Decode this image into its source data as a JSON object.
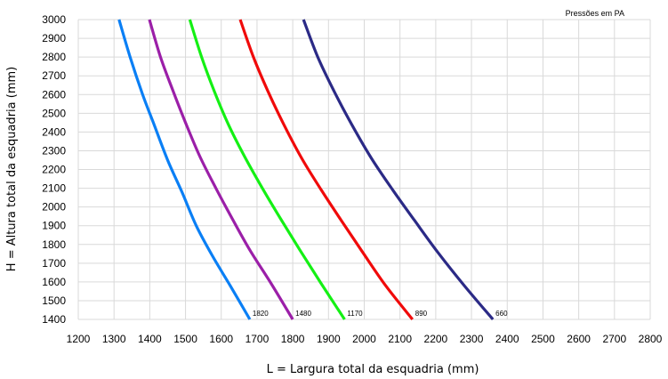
{
  "chart_data": {
    "type": "line",
    "title": "",
    "note": "Pressões em PA",
    "xlabel": "L = Largura total da esquadria (mm)",
    "ylabel": "H = Altura total da esquadria (mm)",
    "xlim": [
      1200,
      2800
    ],
    "ylim": [
      1400,
      3000
    ],
    "x_ticks": [
      1200,
      1300,
      1400,
      1500,
      1600,
      1700,
      1800,
      1900,
      2000,
      2100,
      2200,
      2300,
      2400,
      2500,
      2600,
      2700,
      2800
    ],
    "y_ticks": [
      1400,
      1500,
      1600,
      1700,
      1800,
      1900,
      2000,
      2100,
      2200,
      2300,
      2400,
      2500,
      2600,
      2700,
      2800,
      2900,
      3000
    ],
    "grid": true,
    "legend": "none",
    "series": [
      {
        "name": "1820",
        "color": "#0a7ff5",
        "x": [
          1314,
          1345,
          1380,
          1410,
          1450,
          1490,
          1530,
          1575,
          1625,
          1680
        ],
        "y": [
          3000,
          2800,
          2600,
          2450,
          2250,
          2080,
          1900,
          1740,
          1580,
          1400
        ]
      },
      {
        "name": "1480",
        "color": "#9b1fa8",
        "x": [
          1399,
          1430,
          1465,
          1500,
          1540,
          1585,
          1630,
          1680,
          1740,
          1800
        ],
        "y": [
          3000,
          2800,
          2620,
          2450,
          2270,
          2100,
          1940,
          1770,
          1590,
          1400
        ]
      },
      {
        "name": "1170",
        "color": "#14f014",
        "x": [
          1512,
          1545,
          1580,
          1620,
          1665,
          1715,
          1765,
          1820,
          1880,
          1945
        ],
        "y": [
          3000,
          2800,
          2620,
          2440,
          2270,
          2100,
          1940,
          1770,
          1590,
          1400
        ]
      },
      {
        "name": "890",
        "color": "#f00a0a",
        "x": [
          1653,
          1690,
          1730,
          1775,
          1825,
          1880,
          1935,
          1995,
          2060,
          2135
        ],
        "y": [
          3000,
          2800,
          2620,
          2440,
          2260,
          2090,
          1930,
          1760,
          1580,
          1400
        ]
      },
      {
        "name": "660",
        "color": "#2b2a86",
        "x": [
          1830,
          1870,
          1915,
          1965,
          2020,
          2080,
          2140,
          2205,
          2280,
          2360
        ],
        "y": [
          3000,
          2800,
          2620,
          2440,
          2260,
          2090,
          1930,
          1760,
          1580,
          1400
        ]
      }
    ]
  }
}
